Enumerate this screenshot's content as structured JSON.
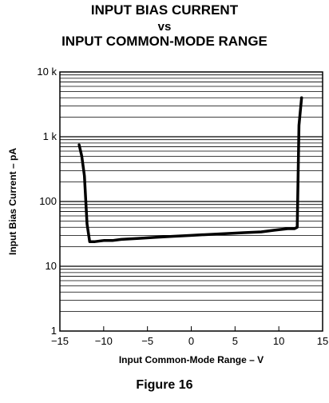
{
  "chart_data": {
    "type": "line",
    "title_lines": [
      "INPUT BIAS CURRENT",
      "vs",
      "INPUT COMMON-MODE RANGE"
    ],
    "xlabel": "Input Common-Mode Range – V",
    "ylabel": "Input Bias Current – pA",
    "xlim": [
      -15,
      15
    ],
    "ylim": [
      1,
      10000
    ],
    "yscale": "log",
    "grid": true,
    "x_ticks": [
      -15,
      -10,
      -5,
      0,
      5,
      10,
      15
    ],
    "x_tick_labels": [
      "−15",
      "−10",
      "−5",
      "0",
      "5",
      "10",
      "15"
    ],
    "y_ticks": [
      1,
      10,
      100,
      1000,
      10000
    ],
    "y_tick_labels": [
      "1",
      "10",
      "100",
      "1 k",
      "10 k"
    ],
    "series": [
      {
        "x": [
          -12.8,
          -12.5,
          -12.2,
          -11.9,
          -11.6,
          -11.0,
          -10.0,
          -9.0,
          -8.0,
          -6.0,
          -4.0,
          -2.0,
          0.0,
          2.0,
          4.0,
          6.0,
          8.0,
          9.5,
          11.0,
          11.8,
          12.1,
          12.3,
          12.6
        ],
        "y": [
          750,
          500,
          250,
          45,
          24,
          24,
          25,
          25,
          26,
          27,
          28,
          29,
          30,
          31,
          32,
          33,
          34,
          36,
          38,
          38,
          40,
          1500,
          4000
        ]
      }
    ]
  },
  "caption": "Figure 16"
}
